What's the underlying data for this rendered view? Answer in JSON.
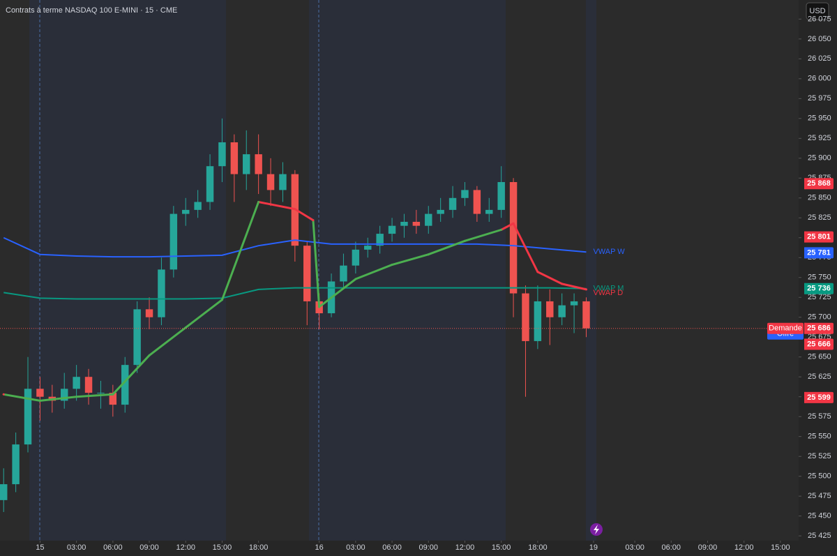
{
  "chart_data": {
    "type": "candlestick",
    "title": "Contrats à terme NASDAQ 100 E-MINI · 15 · CME",
    "currency": "USD",
    "up_color": "#26a69a",
    "down_color": "#ef5350",
    "xlim": [
      -3.3,
      62.5
    ],
    "ylim": [
      25419,
      26099
    ],
    "xticks": [
      {
        "value": 0,
        "label": "15"
      },
      {
        "value": 3,
        "label": "03:00"
      },
      {
        "value": 6,
        "label": "06:00"
      },
      {
        "value": 9,
        "label": "09:00"
      },
      {
        "value": 12,
        "label": "12:00"
      },
      {
        "value": 15,
        "label": "15:00"
      },
      {
        "value": 18,
        "label": "18:00"
      },
      {
        "value": 23,
        "label": "16"
      },
      {
        "value": 26,
        "label": "03:00"
      },
      {
        "value": 29,
        "label": "06:00"
      },
      {
        "value": 32,
        "label": "09:00"
      },
      {
        "value": 35,
        "label": "12:00"
      },
      {
        "value": 38,
        "label": "15:00"
      },
      {
        "value": 41,
        "label": "18:00"
      },
      {
        "value": 45.6,
        "label": "19"
      },
      {
        "value": 49,
        "label": "03:00"
      },
      {
        "value": 52,
        "label": "06:00"
      },
      {
        "value": 55,
        "label": "09:00"
      },
      {
        "value": 58,
        "label": "12:00"
      },
      {
        "value": 61,
        "label": "15:00"
      }
    ],
    "yticks": [
      {
        "value": 26075,
        "label": "26 075"
      },
      {
        "value": 26050,
        "label": "26 050"
      },
      {
        "value": 26025,
        "label": "26 025"
      },
      {
        "value": 26000,
        "label": "26 000"
      },
      {
        "value": 25975,
        "label": "25 975"
      },
      {
        "value": 25950,
        "label": "25 950"
      },
      {
        "value": 25925,
        "label": "25 925"
      },
      {
        "value": 25900,
        "label": "25 900"
      },
      {
        "value": 25875,
        "label": "25 875"
      },
      {
        "value": 25850,
        "label": "25 850"
      },
      {
        "value": 25825,
        "label": "25 825"
      },
      {
        "value": 25800,
        "label": "25 800"
      },
      {
        "value": 25775,
        "label": "25 775"
      },
      {
        "value": 25750,
        "label": "25 750"
      },
      {
        "value": 25725,
        "label": "25 725"
      },
      {
        "value": 25700,
        "label": "25 700"
      },
      {
        "value": 25675,
        "label": "25 675"
      },
      {
        "value": 25650,
        "label": "25 650"
      },
      {
        "value": 25625,
        "label": "25 625"
      },
      {
        "value": 25600,
        "label": "25 600"
      },
      {
        "value": 25575,
        "label": "25 575"
      },
      {
        "value": 25550,
        "label": "25 550"
      },
      {
        "value": 25525,
        "label": "25 525"
      },
      {
        "value": 25500,
        "label": "25 500"
      },
      {
        "value": 25475,
        "label": "25 475"
      },
      {
        "value": 25450,
        "label": "25 450"
      },
      {
        "value": 25425,
        "label": "25 425"
      }
    ],
    "x": [
      -3,
      -2,
      -1,
      0,
      1,
      2,
      3,
      4,
      5,
      6,
      7,
      8,
      9,
      10,
      11,
      12,
      13,
      14,
      15,
      16,
      17,
      18,
      19,
      20,
      21,
      22,
      23,
      24,
      25,
      26,
      27,
      28,
      29,
      30,
      31,
      32,
      33,
      34,
      35,
      36,
      37,
      38,
      39,
      40,
      41,
      42,
      43,
      44,
      45
    ],
    "open": [
      25470,
      25490,
      25540,
      25610,
      25600,
      25595,
      25610,
      25625,
      25605,
      25605,
      25590,
      25640,
      25710,
      25700,
      25760,
      25830,
      25835,
      25845,
      25890,
      25920,
      25880,
      25905,
      25880,
      25860,
      25880,
      25790,
      25720,
      25705,
      25745,
      25765,
      25785,
      25790,
      25805,
      25815,
      25820,
      25815,
      25830,
      25835,
      25850,
      25860,
      25830,
      25835,
      25870,
      25730,
      25670,
      25720,
      25700,
      25715,
      25720
    ],
    "high": [
      25510,
      25555,
      25650,
      25625,
      25615,
      25630,
      25640,
      25635,
      25620,
      25615,
      25650,
      25720,
      25725,
      25775,
      25840,
      25850,
      25860,
      25905,
      25950,
      25930,
      25935,
      25930,
      25900,
      25895,
      25885,
      25795,
      25730,
      25755,
      25780,
      25795,
      25800,
      25815,
      25825,
      25830,
      25835,
      25840,
      25850,
      25865,
      25870,
      25865,
      25850,
      25890,
      25875,
      25740,
      25740,
      25735,
      25730,
      25730,
      25725
    ],
    "low": [
      25455,
      25480,
      25530,
      25570,
      25580,
      25585,
      25595,
      25590,
      25585,
      25575,
      25580,
      25630,
      25685,
      25690,
      25750,
      25815,
      25825,
      25835,
      25870,
      25845,
      25860,
      25855,
      25840,
      25845,
      25770,
      25690,
      25685,
      25700,
      25735,
      25755,
      25775,
      25780,
      25795,
      25800,
      25805,
      25805,
      25820,
      25825,
      25840,
      25820,
      25820,
      25825,
      25700,
      25600,
      25660,
      25665,
      25690,
      25680,
      25675
    ],
    "close": [
      25490,
      25540,
      25610,
      25600,
      25595,
      25610,
      25625,
      25605,
      25605,
      25590,
      25640,
      25710,
      25700,
      25760,
      25830,
      25835,
      25845,
      25890,
      25920,
      25880,
      25905,
      25880,
      25860,
      25880,
      25790,
      25720,
      25705,
      25745,
      25765,
      25785,
      25790,
      25805,
      25815,
      25820,
      25815,
      25830,
      25835,
      25850,
      25860,
      25830,
      25835,
      25870,
      25730,
      25670,
      25720,
      25700,
      25715,
      25720,
      25686
    ],
    "series": [
      {
        "name": "VWAP W",
        "color": "#2962ff",
        "x": [
          -3,
          0,
          3,
          6,
          9,
          12,
          15,
          18,
          21,
          24,
          27,
          30,
          33,
          36,
          39,
          42,
          45
        ],
        "values": [
          25800,
          25779,
          25777,
          25776,
          25776,
          25777,
          25778,
          25790,
          25797,
          25792,
          25792,
          25792,
          25792,
          25792,
          25790,
          25786,
          25782
        ]
      },
      {
        "name": "VWAP M",
        "color": "#089981",
        "x": [
          -3,
          0,
          3,
          6,
          9,
          12,
          15,
          18,
          21,
          24,
          27,
          30,
          33,
          36,
          39,
          42,
          45
        ],
        "values": [
          25731,
          25724,
          25723,
          25723,
          25723,
          25723,
          25724,
          25735,
          25737,
          25737,
          25737,
          25737,
          25737,
          25737,
          25737,
          25737,
          25736
        ]
      },
      {
        "name": "VWAP D",
        "x": [
          -3,
          0,
          3,
          6,
          9,
          12,
          15,
          18,
          21,
          22.5,
          23,
          26,
          29,
          32,
          35,
          38,
          39,
          41,
          43,
          45
        ],
        "values": [
          25603,
          25595,
          25600,
          25603,
          25652,
          25687,
          25722,
          25845,
          25836,
          25822,
          25713,
          25748,
          25766,
          25779,
          25796,
          25810,
          25818,
          25757,
          25742,
          25735
        ],
        "colors": [
          "#f23645",
          "#4caf50",
          "#4caf50",
          "#4caf50",
          "#4caf50",
          "#4caf50",
          "#4caf50",
          "#4caf50",
          "#f23645",
          "#f23645",
          "#4caf50",
          "#4caf50",
          "#4caf50",
          "#4caf50",
          "#4caf50",
          "#4caf50",
          "#f23645",
          "#f23645",
          "#f23645",
          "#f23645"
        ]
      }
    ],
    "price_tags": [
      {
        "value": 25868,
        "label": "25 868",
        "color": "#f23645"
      },
      {
        "value": 25801,
        "label": "25 801",
        "color": "#f23645"
      },
      {
        "value": 25781,
        "label": "25 781",
        "color": "#2962ff"
      },
      {
        "value": 25736,
        "label": "25 736",
        "color": "#089981"
      },
      {
        "value": 25686,
        "label": "25 686",
        "color": "#f23645"
      },
      {
        "value": 25666,
        "label": "25 666",
        "color": "#f23645"
      },
      {
        "value": 25599,
        "label": "25 599",
        "color": "#f23645"
      }
    ],
    "order_tags": [
      {
        "label": "Offre",
        "color": "#2962ff"
      },
      {
        "label": "Demande",
        "color": "#f23645"
      }
    ]
  }
}
